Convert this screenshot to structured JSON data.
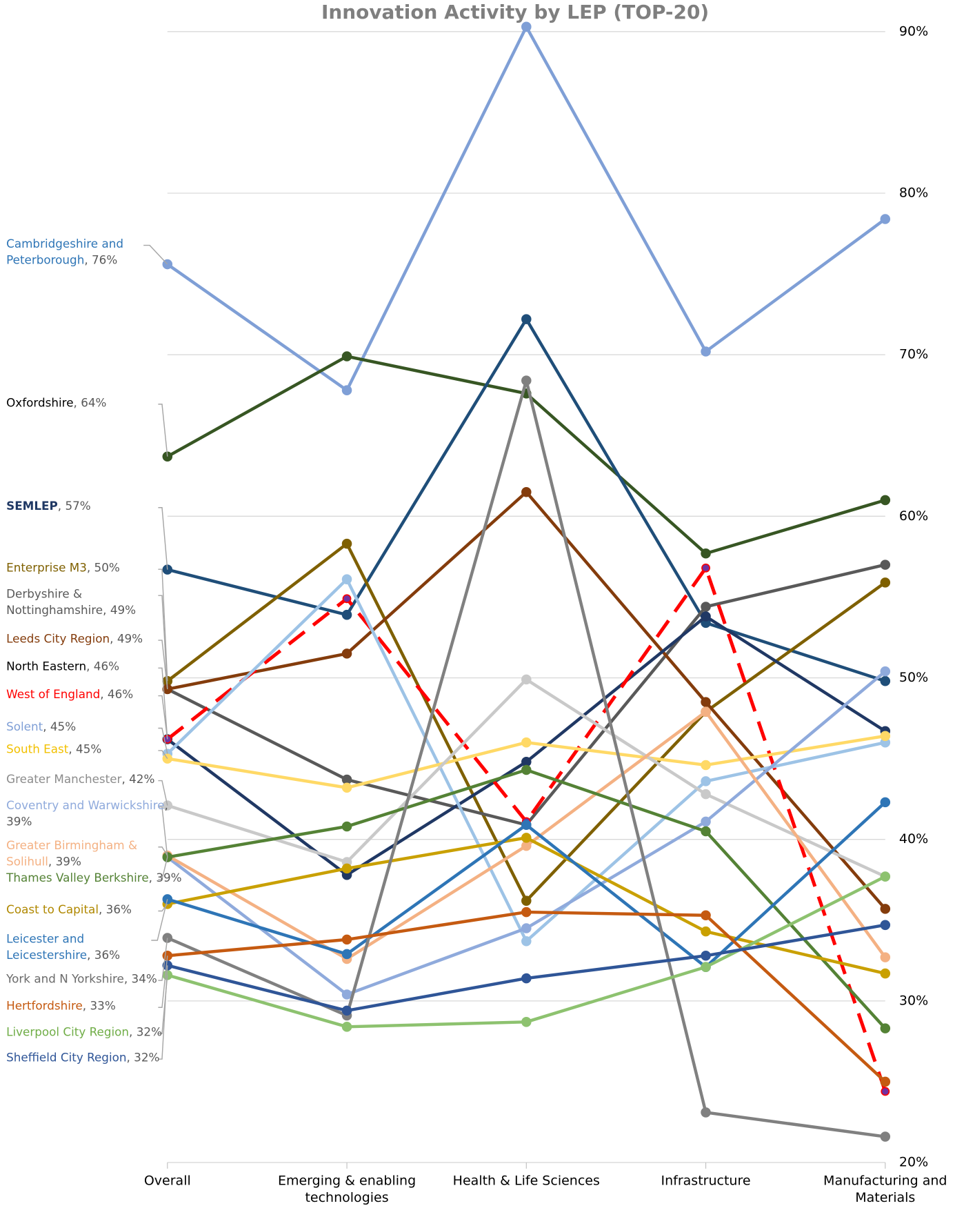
{
  "chart_data": {
    "type": "line",
    "title": "Innovation Activity by LEP (TOP-20)",
    "categories": [
      "Overall",
      "Emerging & enabling technologies",
      "Health & Life Sciences",
      "Infrastructure",
      "Manufacturing and Materials"
    ],
    "ylim": [
      20,
      90
    ],
    "yticks": [
      {
        "value": 20,
        "label": "20%"
      },
      {
        "value": 30,
        "label": "30%"
      },
      {
        "value": 40,
        "label": "40%"
      },
      {
        "value": 50,
        "label": "50%"
      },
      {
        "value": 60,
        "label": "60%"
      },
      {
        "value": 70,
        "label": "70%"
      },
      {
        "value": 80,
        "label": "80%"
      },
      {
        "value": 90,
        "label": "90%"
      }
    ],
    "grid": true,
    "series": [
      {
        "name": "Cambridgeshire and Peterborough",
        "color": "#7f9fd6",
        "label_color": "#2e75b6",
        "values": [
          75.6,
          67.8,
          90.3,
          70.2,
          78.4
        ],
        "value_labels": [
          "76%",
          null,
          null,
          null,
          null
        ]
      },
      {
        "name": "Oxfordshire",
        "color": "#375623",
        "label_color": "#000000",
        "values": [
          63.7,
          69.9,
          67.6,
          57.7,
          61.0
        ],
        "value_labels": [
          "64%",
          null,
          null,
          null,
          null
        ]
      },
      {
        "name": "SEMLEP",
        "color": "#1f4e79",
        "label_color": "#1f3864",
        "values": [
          56.7,
          53.9,
          72.2,
          53.4,
          49.8
        ],
        "value_labels": [
          "57%",
          null,
          null,
          null,
          null
        ]
      },
      {
        "name": "Enterprise M3",
        "color": "#7f6000",
        "values": [
          49.8,
          58.3,
          36.2,
          47.9,
          55.9
        ],
        "value_labels": [
          "50%",
          null,
          null,
          null,
          null
        ]
      },
      {
        "name": "Derbyshire & Nottinghamshire",
        "color": "#595959",
        "values": [
          49.3,
          43.7,
          40.9,
          54.4,
          57.0
        ],
        "value_labels": [
          "49%",
          null,
          null,
          null,
          null
        ]
      },
      {
        "name": "Leeds City Region",
        "color": "#843c0c",
        "values": [
          49.3,
          51.5,
          61.5,
          48.5,
          35.7
        ],
        "value_labels": [
          "49%",
          null,
          null,
          null,
          null
        ]
      },
      {
        "name": "North Eastern",
        "color": "#203864",
        "label_color": "#000000",
        "values": [
          46.2,
          37.8,
          44.8,
          53.8,
          46.7
        ],
        "value_labels": [
          "46%",
          null,
          null,
          null,
          null
        ]
      },
      {
        "name": "West of England",
        "color": "#ff0000",
        "dash": true,
        "marker_color": "#7030a0",
        "values": [
          46.2,
          54.9,
          41.1,
          56.8,
          24.4
        ],
        "value_labels": [
          "46%",
          null,
          null,
          null,
          null
        ]
      },
      {
        "name": "Solent",
        "color": "#9dc3e6",
        "label_color": "#7f9fd6",
        "values": [
          45.3,
          56.1,
          33.7,
          43.6,
          46.0
        ],
        "value_labels": [
          "45%",
          null,
          null,
          null,
          null
        ]
      },
      {
        "name": "South East",
        "color": "#ffd966",
        "label_color": "#f2c000",
        "values": [
          45.0,
          43.2,
          46.0,
          44.6,
          46.4
        ],
        "value_labels": [
          "45%",
          null,
          null,
          null,
          null
        ]
      },
      {
        "name": "Greater Manchester",
        "color": "#c9c9c9",
        "label_color": "#8c8c8c",
        "values": [
          42.1,
          38.6,
          49.9,
          42.8,
          37.7
        ],
        "value_labels": [
          "42%",
          null,
          null,
          null,
          null
        ]
      },
      {
        "name": "Coventry and Warwickshire",
        "color": "#8faadc",
        "values": [
          38.9,
          30.4,
          34.5,
          41.1,
          50.4
        ],
        "value_labels": [
          "39%",
          null,
          null,
          null,
          null
        ]
      },
      {
        "name": "Greater Birmingham & Solihull",
        "color": "#f4b183",
        "values": [
          39.0,
          32.6,
          39.6,
          47.9,
          32.7
        ],
        "value_labels": [
          "39%",
          null,
          null,
          null,
          null
        ]
      },
      {
        "name": "Thames Valley Berkshire",
        "color": "#548235",
        "values": [
          38.9,
          40.8,
          44.3,
          40.5,
          28.3
        ],
        "value_labels": [
          "39%",
          null,
          null,
          null,
          null
        ]
      },
      {
        "name": "Coast to Capital",
        "color": "#c9a000",
        "label_color": "#b08800",
        "values": [
          36.0,
          38.2,
          40.1,
          34.3,
          31.7
        ],
        "value_labels": [
          "36%",
          null,
          null,
          null,
          null
        ]
      },
      {
        "name": "Leicester and Leicestershire",
        "color": "#2e75b6",
        "values": [
          36.3,
          32.9,
          40.9,
          32.1,
          42.3
        ],
        "value_labels": [
          "36%",
          null,
          null,
          null,
          null
        ]
      },
      {
        "name": "York and N Yorkshire",
        "color": "#808080",
        "label_color": "#6b6b6b",
        "values": [
          33.9,
          29.1,
          68.4,
          23.1,
          21.6
        ],
        "value_labels": [
          "34%",
          null,
          null,
          null,
          null
        ]
      },
      {
        "name": "Hertfordshire",
        "color": "#c55a11",
        "values": [
          32.8,
          33.8,
          35.5,
          35.3,
          25.0
        ],
        "value_labels": [
          "33%",
          null,
          null,
          null,
          null
        ]
      },
      {
        "name": "Liverpool City Region",
        "color": "#8dc26f",
        "label_color": "#70ad47",
        "values": [
          31.6,
          28.4,
          28.7,
          32.1,
          37.7
        ],
        "value_labels": [
          "32%",
          null,
          null,
          null,
          null
        ]
      },
      {
        "name": "Sheffield City Region",
        "color": "#2f5597",
        "values": [
          32.2,
          29.4,
          31.4,
          32.8,
          34.7
        ],
        "value_labels": [
          "32%",
          null,
          null,
          null,
          null
        ]
      }
    ]
  }
}
